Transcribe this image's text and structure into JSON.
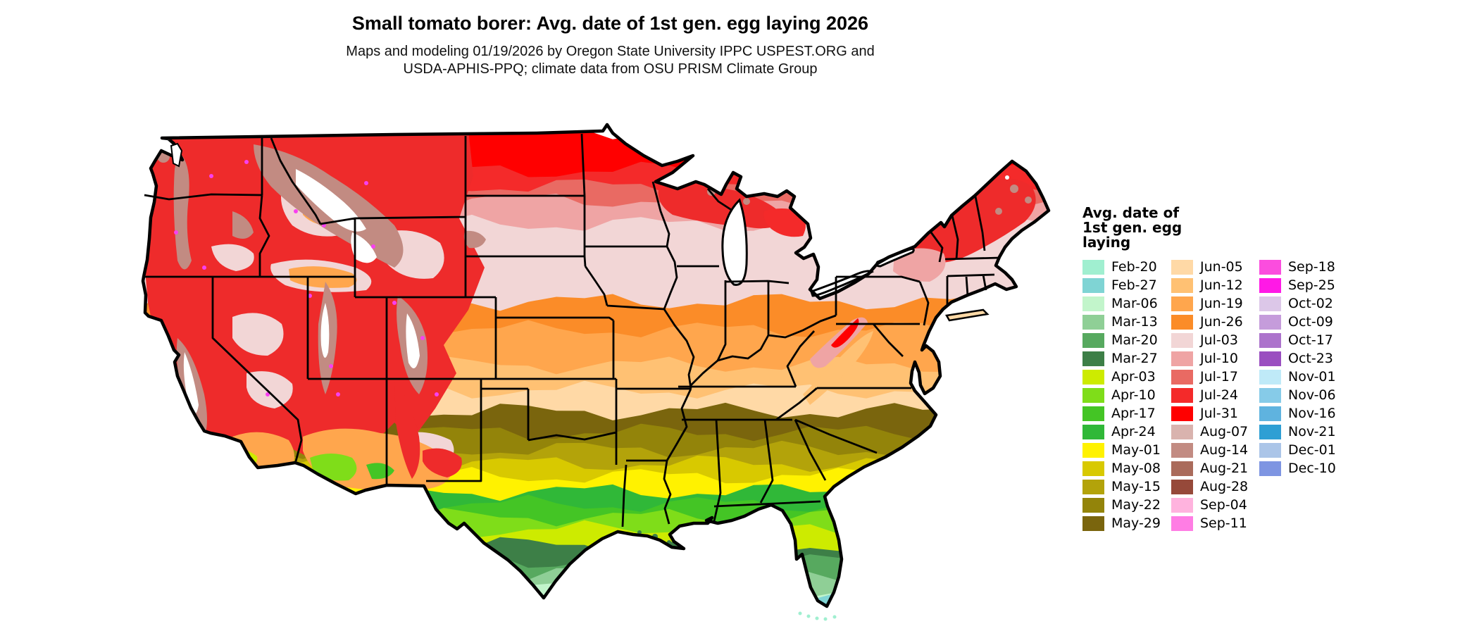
{
  "title": "Small tomato borer: Avg. date of 1st gen. egg laying 2026",
  "subtitle_line1": "Maps and modeling 01/19/2026 by Oregon State University IPPC USPEST.ORG and",
  "subtitle_line2": "USDA-APHIS-PPQ; climate data from OSU PRISM Climate Group",
  "legend": {
    "title_lines": [
      "Avg. date of",
      "1st gen. egg",
      "laying"
    ],
    "columns": [
      {
        "entries": [
          {
            "label": "Feb-20",
            "color": "#A0EFD0"
          },
          {
            "label": "Feb-27",
            "color": "#7FD4D4"
          },
          {
            "label": "Mar-06",
            "color": "#C2F5CB"
          },
          {
            "label": "Mar-13",
            "color": "#8FCF96"
          },
          {
            "label": "Mar-20",
            "color": "#57A95F"
          },
          {
            "label": "Mar-27",
            "color": "#3D7F47"
          },
          {
            "label": "Apr-03",
            "color": "#CDEB00"
          },
          {
            "label": "Apr-10",
            "color": "#7FDD19"
          },
          {
            "label": "Apr-17",
            "color": "#44C525"
          },
          {
            "label": "Apr-24",
            "color": "#30B838"
          },
          {
            "label": "May-01",
            "color": "#FFF200"
          },
          {
            "label": "May-08",
            "color": "#D8C900"
          },
          {
            "label": "May-15",
            "color": "#B3A30A"
          },
          {
            "label": "May-22",
            "color": "#93840A"
          },
          {
            "label": "May-29",
            "color": "#7A650D"
          }
        ]
      },
      {
        "entries": [
          {
            "label": "Jun-05",
            "color": "#FFD9A6"
          },
          {
            "label": "Jun-12",
            "color": "#FFC173"
          },
          {
            "label": "Jun-19",
            "color": "#FFA64D"
          },
          {
            "label": "Jun-26",
            "color": "#FB8C28"
          },
          {
            "label": "Jul-03",
            "color": "#F2D6D6"
          },
          {
            "label": "Jul-10",
            "color": "#EFA4A4"
          },
          {
            "label": "Jul-17",
            "color": "#E96A63"
          },
          {
            "label": "Jul-24",
            "color": "#F42A2A"
          },
          {
            "label": "Jul-31",
            "color": "#FF0000"
          },
          {
            "label": "Aug-07",
            "color": "#D9B3AE"
          },
          {
            "label": "Aug-14",
            "color": "#C28B82"
          },
          {
            "label": "Aug-21",
            "color": "#AA6B5B"
          },
          {
            "label": "Aug-28",
            "color": "#96493A"
          },
          {
            "label": "Sep-04",
            "color": "#FFB3DE"
          },
          {
            "label": "Sep-11",
            "color": "#FF7DE4"
          }
        ]
      },
      {
        "entries": [
          {
            "label": "Sep-18",
            "color": "#FB4DDE"
          },
          {
            "label": "Sep-25",
            "color": "#FF19E6"
          },
          {
            "label": "Oct-02",
            "color": "#DCC7E8"
          },
          {
            "label": "Oct-09",
            "color": "#C59CDB"
          },
          {
            "label": "Oct-17",
            "color": "#AC73CC"
          },
          {
            "label": "Oct-23",
            "color": "#9A4EC0"
          },
          {
            "label": "Nov-01",
            "color": "#BFEAF8"
          },
          {
            "label": "Nov-06",
            "color": "#86CBE8"
          },
          {
            "label": "Nov-16",
            "color": "#5FB3DF"
          },
          {
            "label": "Nov-21",
            "color": "#2E9FD4"
          },
          {
            "label": "Dec-01",
            "color": "#ABC5E8"
          },
          {
            "label": "Dec-10",
            "color": "#7E95E2"
          }
        ]
      }
    ]
  },
  "map": {
    "region": "Contiguous United States",
    "outline_color": "#000000",
    "background": "#FFFFFF"
  }
}
